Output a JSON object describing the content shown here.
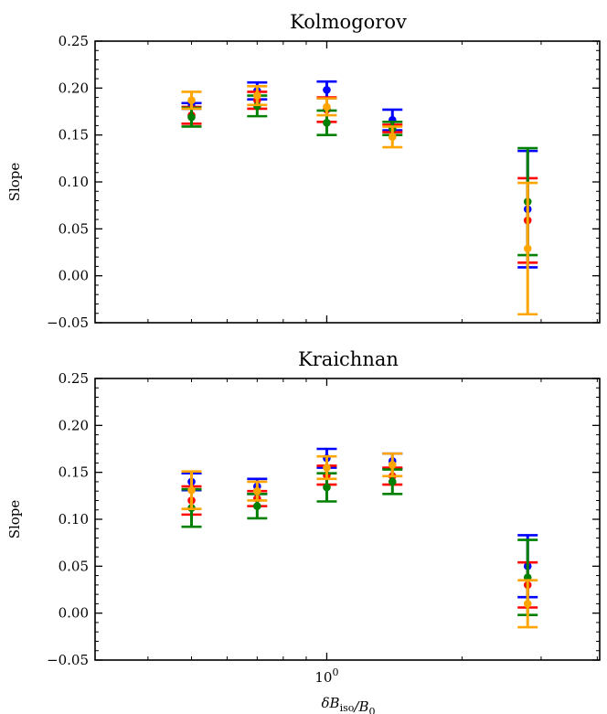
{
  "chart_data": [
    {
      "type": "scatter",
      "title": "Kolmogorov",
      "ylabel": "Slope",
      "xlabel": "",
      "xscale": "log",
      "ylim": [
        -0.05,
        0.25
      ],
      "yticks": [
        "0.25",
        "0.20",
        "0.15",
        "0.10",
        "0.05",
        "0.00",
        "−0.05"
      ],
      "xticks": [],
      "series": [
        {
          "color": "#0000ff",
          "points": [
            {
              "x": 0.5,
              "y": 0.181,
              "err": 0.003
            },
            {
              "x": 0.7,
              "y": 0.197,
              "err": 0.009
            },
            {
              "x": 1.0,
              "y": 0.198,
              "err": 0.009
            },
            {
              "x": 1.4,
              "y": 0.166,
              "err": 0.011
            },
            {
              "x": 2.8,
              "y": 0.071,
              "err": 0.062
            }
          ]
        },
        {
          "color": "#ff0000",
          "points": [
            {
              "x": 0.5,
              "y": 0.171,
              "err": 0.009
            },
            {
              "x": 0.7,
              "y": 0.187,
              "err": 0.009
            },
            {
              "x": 1.0,
              "y": 0.177,
              "err": 0.013
            },
            {
              "x": 1.4,
              "y": 0.157,
              "err": 0.004
            },
            {
              "x": 2.8,
              "y": 0.059,
              "err": 0.045
            }
          ]
        },
        {
          "color": "#008000",
          "points": [
            {
              "x": 0.5,
              "y": 0.169,
              "err": 0.01
            },
            {
              "x": 0.7,
              "y": 0.181,
              "err": 0.011
            },
            {
              "x": 1.0,
              "y": 0.163,
              "err": 0.013
            },
            {
              "x": 1.4,
              "y": 0.157,
              "err": 0.007
            },
            {
              "x": 2.8,
              "y": 0.079,
              "err": 0.057
            }
          ]
        },
        {
          "color": "#ffa500",
          "points": [
            {
              "x": 0.5,
              "y": 0.187,
              "err": 0.009
            },
            {
              "x": 0.7,
              "y": 0.192,
              "err": 0.01
            },
            {
              "x": 1.0,
              "y": 0.18,
              "err": 0.009
            },
            {
              "x": 1.4,
              "y": 0.148,
              "err": 0.011
            },
            {
              "x": 2.8,
              "y": 0.029,
              "err": 0.07
            }
          ]
        }
      ]
    },
    {
      "type": "scatter",
      "title": "Kraichnan",
      "ylabel": "Slope",
      "xlabel": "δB_iso/B_0",
      "xscale": "log",
      "ylim": [
        -0.05,
        0.25
      ],
      "yticks": [
        "0.25",
        "0.20",
        "0.15",
        "0.10",
        "0.05",
        "0.00",
        "−0.05"
      ],
      "xticks": [
        "10^0"
      ],
      "series": [
        {
          "color": "#0000ff",
          "points": [
            {
              "x": 0.5,
              "y": 0.14,
              "err": 0.009
            },
            {
              "x": 0.7,
              "y": 0.135,
              "err": 0.008
            },
            {
              "x": 1.0,
              "y": 0.165,
              "err": 0.01
            },
            {
              "x": 1.4,
              "y": 0.162,
              "err": 0.008
            },
            {
              "x": 2.8,
              "y": 0.05,
              "err": 0.033
            }
          ]
        },
        {
          "color": "#ff0000",
          "points": [
            {
              "x": 0.5,
              "y": 0.12,
              "err": 0.015
            },
            {
              "x": 0.7,
              "y": 0.122,
              "err": 0.008
            },
            {
              "x": 1.0,
              "y": 0.147,
              "err": 0.01
            },
            {
              "x": 1.4,
              "y": 0.146,
              "err": 0.009
            },
            {
              "x": 2.8,
              "y": 0.03,
              "err": 0.024
            }
          ]
        },
        {
          "color": "#008000",
          "points": [
            {
              "x": 0.5,
              "y": 0.112,
              "err": 0.02
            },
            {
              "x": 0.7,
              "y": 0.114,
              "err": 0.013
            },
            {
              "x": 1.0,
              "y": 0.134,
              "err": 0.015
            },
            {
              "x": 1.4,
              "y": 0.14,
              "err": 0.013
            },
            {
              "x": 2.8,
              "y": 0.038,
              "err": 0.04
            }
          ]
        },
        {
          "color": "#ffa500",
          "points": [
            {
              "x": 0.5,
              "y": 0.131,
              "err": 0.02
            },
            {
              "x": 0.7,
              "y": 0.13,
              "err": 0.01
            },
            {
              "x": 1.0,
              "y": 0.155,
              "err": 0.012
            },
            {
              "x": 1.4,
              "y": 0.158,
              "err": 0.012
            },
            {
              "x": 2.8,
              "y": 0.01,
              "err": 0.025
            }
          ]
        }
      ]
    }
  ]
}
